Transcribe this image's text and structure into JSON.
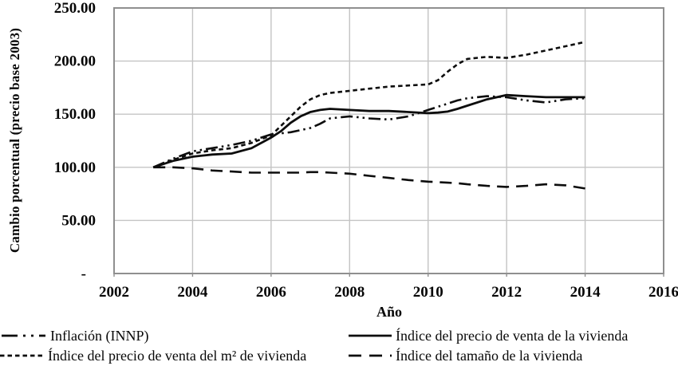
{
  "chart_data": {
    "type": "line",
    "title": "",
    "xlabel": "Año",
    "ylabel": "Cambio porcentual (precio base 2003)",
    "xlim": [
      2002,
      2016
    ],
    "ylim": [
      0,
      250
    ],
    "grid": true,
    "legend_position": "bottom-two-columns",
    "xticks": [
      {
        "value": 2002,
        "label": "2002"
      },
      {
        "value": 2004,
        "label": "2004"
      },
      {
        "value": 2006,
        "label": "2006"
      },
      {
        "value": 2008,
        "label": "2008"
      },
      {
        "value": 2010,
        "label": "2010"
      },
      {
        "value": 2012,
        "label": "2012"
      },
      {
        "value": 2014,
        "label": "2014"
      },
      {
        "value": 2016,
        "label": "2016"
      }
    ],
    "yticks": [
      {
        "value": 250,
        "label": "250.00"
      },
      {
        "value": 200,
        "label": "200.00"
      },
      {
        "value": 150,
        "label": "150.00"
      },
      {
        "value": 100,
        "label": "100.00"
      },
      {
        "value": 50,
        "label": "50.00"
      },
      {
        "value": 0,
        "label": "-",
        "dx": -12
      }
    ],
    "x": [
      2003,
      2003.5,
      2004,
      2004.5,
      2005,
      2005.5,
      2006,
      2006.25,
      2006.5,
      2006.75,
      2007,
      2007.25,
      2007.5,
      2008,
      2008.5,
      2009,
      2009.5,
      2010,
      2010.25,
      2010.5,
      2010.75,
      2011,
      2011.5,
      2012,
      2012.5,
      2013,
      2013.5,
      2014
    ],
    "series": [
      {
        "key": "inflacion",
        "name": "Inflación (INNP)",
        "line_style": "dash-dot-dot",
        "values": [
          100,
          108,
          115,
          118,
          121,
          125,
          131,
          132,
          133,
          135,
          137,
          141,
          146,
          148,
          146,
          145,
          148,
          154,
          157,
          160,
          163,
          165,
          167,
          166,
          163,
          161,
          164,
          165
        ]
      },
      {
        "key": "precio-vivienda",
        "name": "Índice del precio de venta de la vivienda",
        "line_style": "solid",
        "values": [
          100,
          106,
          110,
          112,
          113,
          118,
          128,
          134,
          142,
          148,
          152,
          154,
          155,
          154,
          153,
          153,
          152,
          151,
          151.5,
          152.5,
          155,
          158,
          164,
          168,
          167,
          166,
          166,
          166
        ]
      },
      {
        "key": "precio-m2",
        "name": "Índice del precio de venta del m² de vivienda",
        "line_style": "short-dash",
        "values": [
          100,
          107,
          113,
          116,
          118,
          123,
          130,
          139,
          148,
          157,
          164,
          168,
          170,
          172,
          174,
          176,
          177,
          178,
          182,
          190,
          197,
          202,
          204,
          203,
          206,
          210,
          214,
          218
        ]
      },
      {
        "key": "tamano-vivienda",
        "name": "Índice del tamaño de la vivienda",
        "line_style": "long-dash",
        "values": [
          100,
          100,
          99,
          97,
          96,
          95,
          95,
          95,
          95,
          95,
          95.5,
          95.5,
          95,
          94,
          92,
          90,
          88,
          86.5,
          86,
          85.5,
          85,
          84,
          82.5,
          81.5,
          82.5,
          84,
          83,
          80
        ]
      }
    ],
    "colors": {
      "line": "#0d0d0d",
      "grid": "#c4c4c4",
      "border": "#8f8f8f",
      "text": "#070707"
    }
  }
}
